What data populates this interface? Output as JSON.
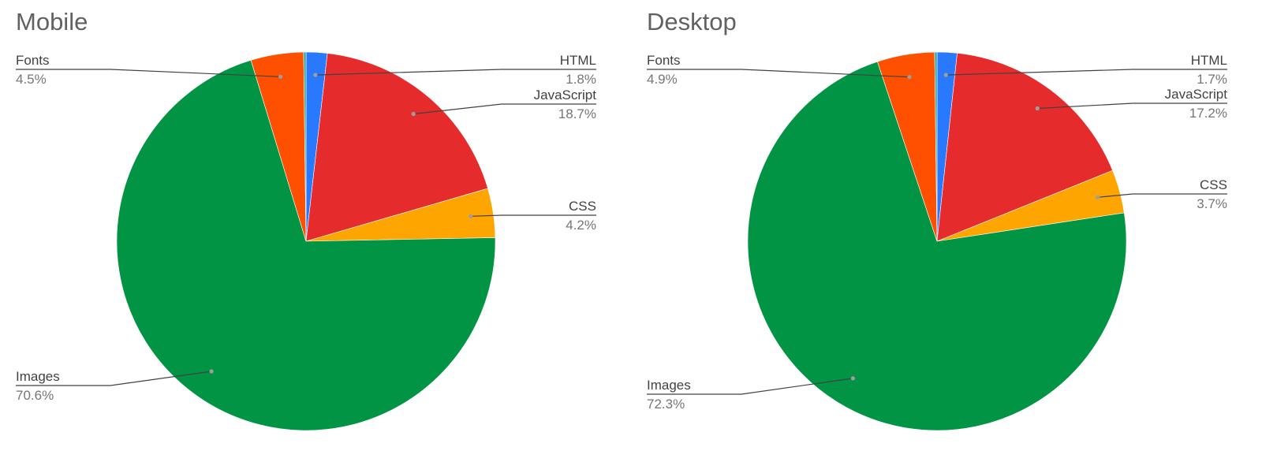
{
  "colors": {
    "html": "#2979ff",
    "javascript": "#e52b2b",
    "css": "#ffa500",
    "images": "#009444",
    "fonts": "#fe5000",
    "other": "#26a69a",
    "leader_line": "#424242",
    "title_text": "#616161"
  },
  "chart_data": [
    {
      "type": "pie",
      "title": "Mobile",
      "slices": [
        {
          "name": "HTML",
          "value": 1.8,
          "label": "1.8%",
          "color": "#2979ff"
        },
        {
          "name": "JavaScript",
          "value": 18.7,
          "label": "18.7%",
          "color": "#e52b2b"
        },
        {
          "name": "CSS",
          "value": 4.2,
          "label": "4.2%",
          "color": "#ffa500"
        },
        {
          "name": "Images",
          "value": 70.6,
          "label": "70.6%",
          "color": "#009444"
        },
        {
          "name": "Fonts",
          "value": 4.5,
          "label": "4.5%",
          "color": "#fe5000"
        },
        {
          "name": "",
          "value": 0.2,
          "label": "",
          "color": "#26a69a"
        }
      ],
      "legend": "none",
      "labels": "outside-with-leader-lines"
    },
    {
      "type": "pie",
      "title": "Desktop",
      "slices": [
        {
          "name": "HTML",
          "value": 1.7,
          "label": "1.7%",
          "color": "#2979ff"
        },
        {
          "name": "JavaScript",
          "value": 17.2,
          "label": "17.2%",
          "color": "#e52b2b"
        },
        {
          "name": "CSS",
          "value": 3.7,
          "label": "3.7%",
          "color": "#ffa500"
        },
        {
          "name": "Images",
          "value": 72.3,
          "label": "72.3%",
          "color": "#009444"
        },
        {
          "name": "Fonts",
          "value": 4.9,
          "label": "4.9%",
          "color": "#fe5000"
        },
        {
          "name": "",
          "value": 0.2,
          "label": "",
          "color": "#26a69a"
        }
      ],
      "legend": "none",
      "labels": "outside-with-leader-lines"
    }
  ]
}
